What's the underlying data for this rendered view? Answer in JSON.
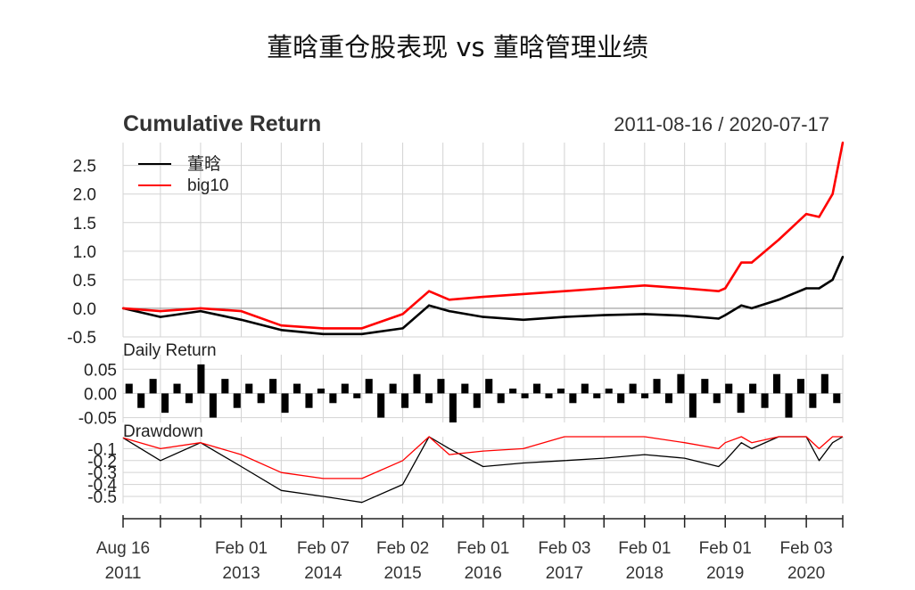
{
  "title": "董晗重仓股表现 vs 董晗管理业绩",
  "colors": {
    "dong_han": "#000000",
    "big10": "#ff0000",
    "grid": "#d3d3d3"
  },
  "chart_data": [
    {
      "type": "line",
      "name": "cumulative-return",
      "title": "Cumulative Return",
      "date_range": "2011-08-16 / 2020-07-17",
      "ylim": [
        -0.5,
        2.9
      ],
      "y_ticks": [
        "2.5",
        "2.0",
        "1.5",
        "1.0",
        "0.5",
        "0.0",
        "-0.5"
      ],
      "grid": true,
      "legend": "top-left",
      "series": [
        {
          "name": "董晗",
          "color": "#000000",
          "x": [
            "2011-08-16",
            "2012-02-01",
            "2012-08-01",
            "2013-02-01",
            "2013-08-01",
            "2014-02-07",
            "2014-08-01",
            "2015-02-02",
            "2015-06-01",
            "2015-09-01",
            "2016-02-01",
            "2016-08-01",
            "2017-02-03",
            "2017-08-01",
            "2018-02-01",
            "2018-08-01",
            "2019-01-02",
            "2019-02-01",
            "2019-04-15",
            "2019-06-01",
            "2019-10-01",
            "2020-02-03",
            "2020-04-01",
            "2020-06-01",
            "2020-07-17"
          ],
          "values": [
            0.0,
            -0.15,
            -0.05,
            -0.2,
            -0.38,
            -0.45,
            -0.45,
            -0.35,
            0.05,
            -0.05,
            -0.15,
            -0.2,
            -0.15,
            -0.12,
            -0.1,
            -0.13,
            -0.18,
            -0.12,
            0.05,
            0.0,
            0.15,
            0.35,
            0.35,
            0.5,
            0.9
          ]
        },
        {
          "name": "big10",
          "color": "#ff0000",
          "x": [
            "2011-08-16",
            "2012-02-01",
            "2012-08-01",
            "2013-02-01",
            "2013-08-01",
            "2014-02-07",
            "2014-08-01",
            "2015-02-02",
            "2015-06-01",
            "2015-09-01",
            "2016-02-01",
            "2016-08-01",
            "2017-02-03",
            "2017-08-01",
            "2018-02-01",
            "2018-08-01",
            "2019-01-02",
            "2019-02-01",
            "2019-04-15",
            "2019-06-01",
            "2019-10-01",
            "2020-02-03",
            "2020-04-01",
            "2020-06-01",
            "2020-07-17"
          ],
          "values": [
            0.0,
            -0.05,
            0.0,
            -0.05,
            -0.3,
            -0.35,
            -0.35,
            -0.1,
            0.3,
            0.15,
            0.2,
            0.25,
            0.3,
            0.35,
            0.4,
            0.35,
            0.3,
            0.35,
            0.8,
            0.8,
            1.2,
            1.65,
            1.6,
            2.0,
            2.9
          ]
        }
      ]
    },
    {
      "type": "bar",
      "name": "daily-return",
      "title": "Daily Return",
      "ylim": [
        -0.06,
        0.08
      ],
      "y_ticks": [
        "0.05",
        "0.00",
        "-0.05"
      ],
      "grid": true,
      "sample_values": [
        0.02,
        -0.03,
        0.03,
        -0.04,
        0.02,
        -0.02,
        0.06,
        -0.05,
        0.03,
        -0.03,
        0.02,
        -0.02,
        0.03,
        -0.04,
        0.02,
        -0.03,
        0.01,
        -0.02,
        0.02,
        -0.01,
        0.03,
        -0.05,
        0.02,
        -0.03,
        0.04,
        -0.02,
        0.03,
        -0.06,
        0.02,
        -0.03,
        0.03,
        -0.02,
        0.01,
        -0.01,
        0.02,
        -0.01,
        0.01,
        -0.02,
        0.02,
        -0.01,
        0.01,
        -0.02,
        0.02,
        -0.01,
        0.03,
        -0.02,
        0.04,
        -0.05,
        0.03,
        -0.02,
        0.02,
        -0.04,
        0.02,
        -0.03,
        0.04,
        -0.05,
        0.03,
        -0.03,
        0.04,
        -0.02
      ]
    },
    {
      "type": "line",
      "name": "drawdown",
      "title": "Drawdown",
      "ylim": [
        -0.56,
        0.0
      ],
      "y_ticks": [
        "-0.1",
        "-0.2",
        "-0.3",
        "-0.4",
        "-0.5"
      ],
      "grid": true,
      "series": [
        {
          "name": "董晗",
          "color": "#000000",
          "x": [
            "2011-08-16",
            "2012-02-01",
            "2012-08-01",
            "2013-02-01",
            "2013-08-01",
            "2014-02-07",
            "2014-08-01",
            "2015-02-02",
            "2015-06-01",
            "2015-09-01",
            "2016-02-01",
            "2016-08-01",
            "2017-02-03",
            "2017-08-01",
            "2018-02-01",
            "2018-08-01",
            "2019-01-02",
            "2019-02-01",
            "2019-04-15",
            "2019-06-01",
            "2019-10-01",
            "2020-02-03",
            "2020-04-01",
            "2020-06-01",
            "2020-07-17"
          ],
          "values": [
            -0.01,
            -0.2,
            -0.05,
            -0.25,
            -0.45,
            -0.5,
            -0.55,
            -0.4,
            0.0,
            -0.1,
            -0.25,
            -0.22,
            -0.2,
            -0.18,
            -0.15,
            -0.18,
            -0.25,
            -0.2,
            -0.05,
            -0.1,
            0.0,
            0.0,
            -0.2,
            -0.05,
            0.0
          ]
        },
        {
          "name": "big10",
          "color": "#ff0000",
          "x": [
            "2011-08-16",
            "2012-02-01",
            "2012-08-01",
            "2013-02-01",
            "2013-08-01",
            "2014-02-07",
            "2014-08-01",
            "2015-02-02",
            "2015-06-01",
            "2015-09-01",
            "2016-02-01",
            "2016-08-01",
            "2017-02-03",
            "2017-08-01",
            "2018-02-01",
            "2018-08-01",
            "2019-01-02",
            "2019-02-01",
            "2019-04-15",
            "2019-06-01",
            "2019-10-01",
            "2020-02-03",
            "2020-04-01",
            "2020-06-01",
            "2020-07-17"
          ],
          "values": [
            -0.01,
            -0.1,
            -0.05,
            -0.15,
            -0.3,
            -0.35,
            -0.35,
            -0.2,
            0.0,
            -0.15,
            -0.12,
            -0.1,
            0.0,
            0.0,
            0.0,
            -0.05,
            -0.1,
            -0.05,
            0.0,
            -0.05,
            0.0,
            0.0,
            -0.1,
            0.0,
            0.0
          ]
        }
      ]
    }
  ],
  "x_axis": {
    "labels": [
      {
        "date": "2011-08-16",
        "line1": "Aug 16",
        "line2": "2011"
      },
      {
        "date": "2013-02-01",
        "line1": "Feb 01",
        "line2": "2013"
      },
      {
        "date": "2014-02-07",
        "line1": "Feb 07",
        "line2": "2014"
      },
      {
        "date": "2015-02-02",
        "line1": "Feb 02",
        "line2": "2015"
      },
      {
        "date": "2016-02-01",
        "line1": "Feb 01",
        "line2": "2016"
      },
      {
        "date": "2017-02-03",
        "line1": "Feb 03",
        "line2": "2017"
      },
      {
        "date": "2018-02-01",
        "line1": "Feb 01",
        "line2": "2018"
      },
      {
        "date": "2019-02-01",
        "line1": "Feb 01",
        "line2": "2019"
      },
      {
        "date": "2020-02-03",
        "line1": "Feb 03",
        "line2": "2020"
      }
    ],
    "tick_dates": [
      "2011-08-16",
      "2012-02-01",
      "2012-08-01",
      "2013-02-01",
      "2013-08-01",
      "2014-02-07",
      "2014-08-01",
      "2015-02-02",
      "2015-08-03",
      "2016-02-01",
      "2016-08-01",
      "2017-02-03",
      "2017-08-01",
      "2018-02-01",
      "2018-08-01",
      "2019-02-01",
      "2019-08-01",
      "2020-02-03",
      "2020-07-17"
    ]
  }
}
